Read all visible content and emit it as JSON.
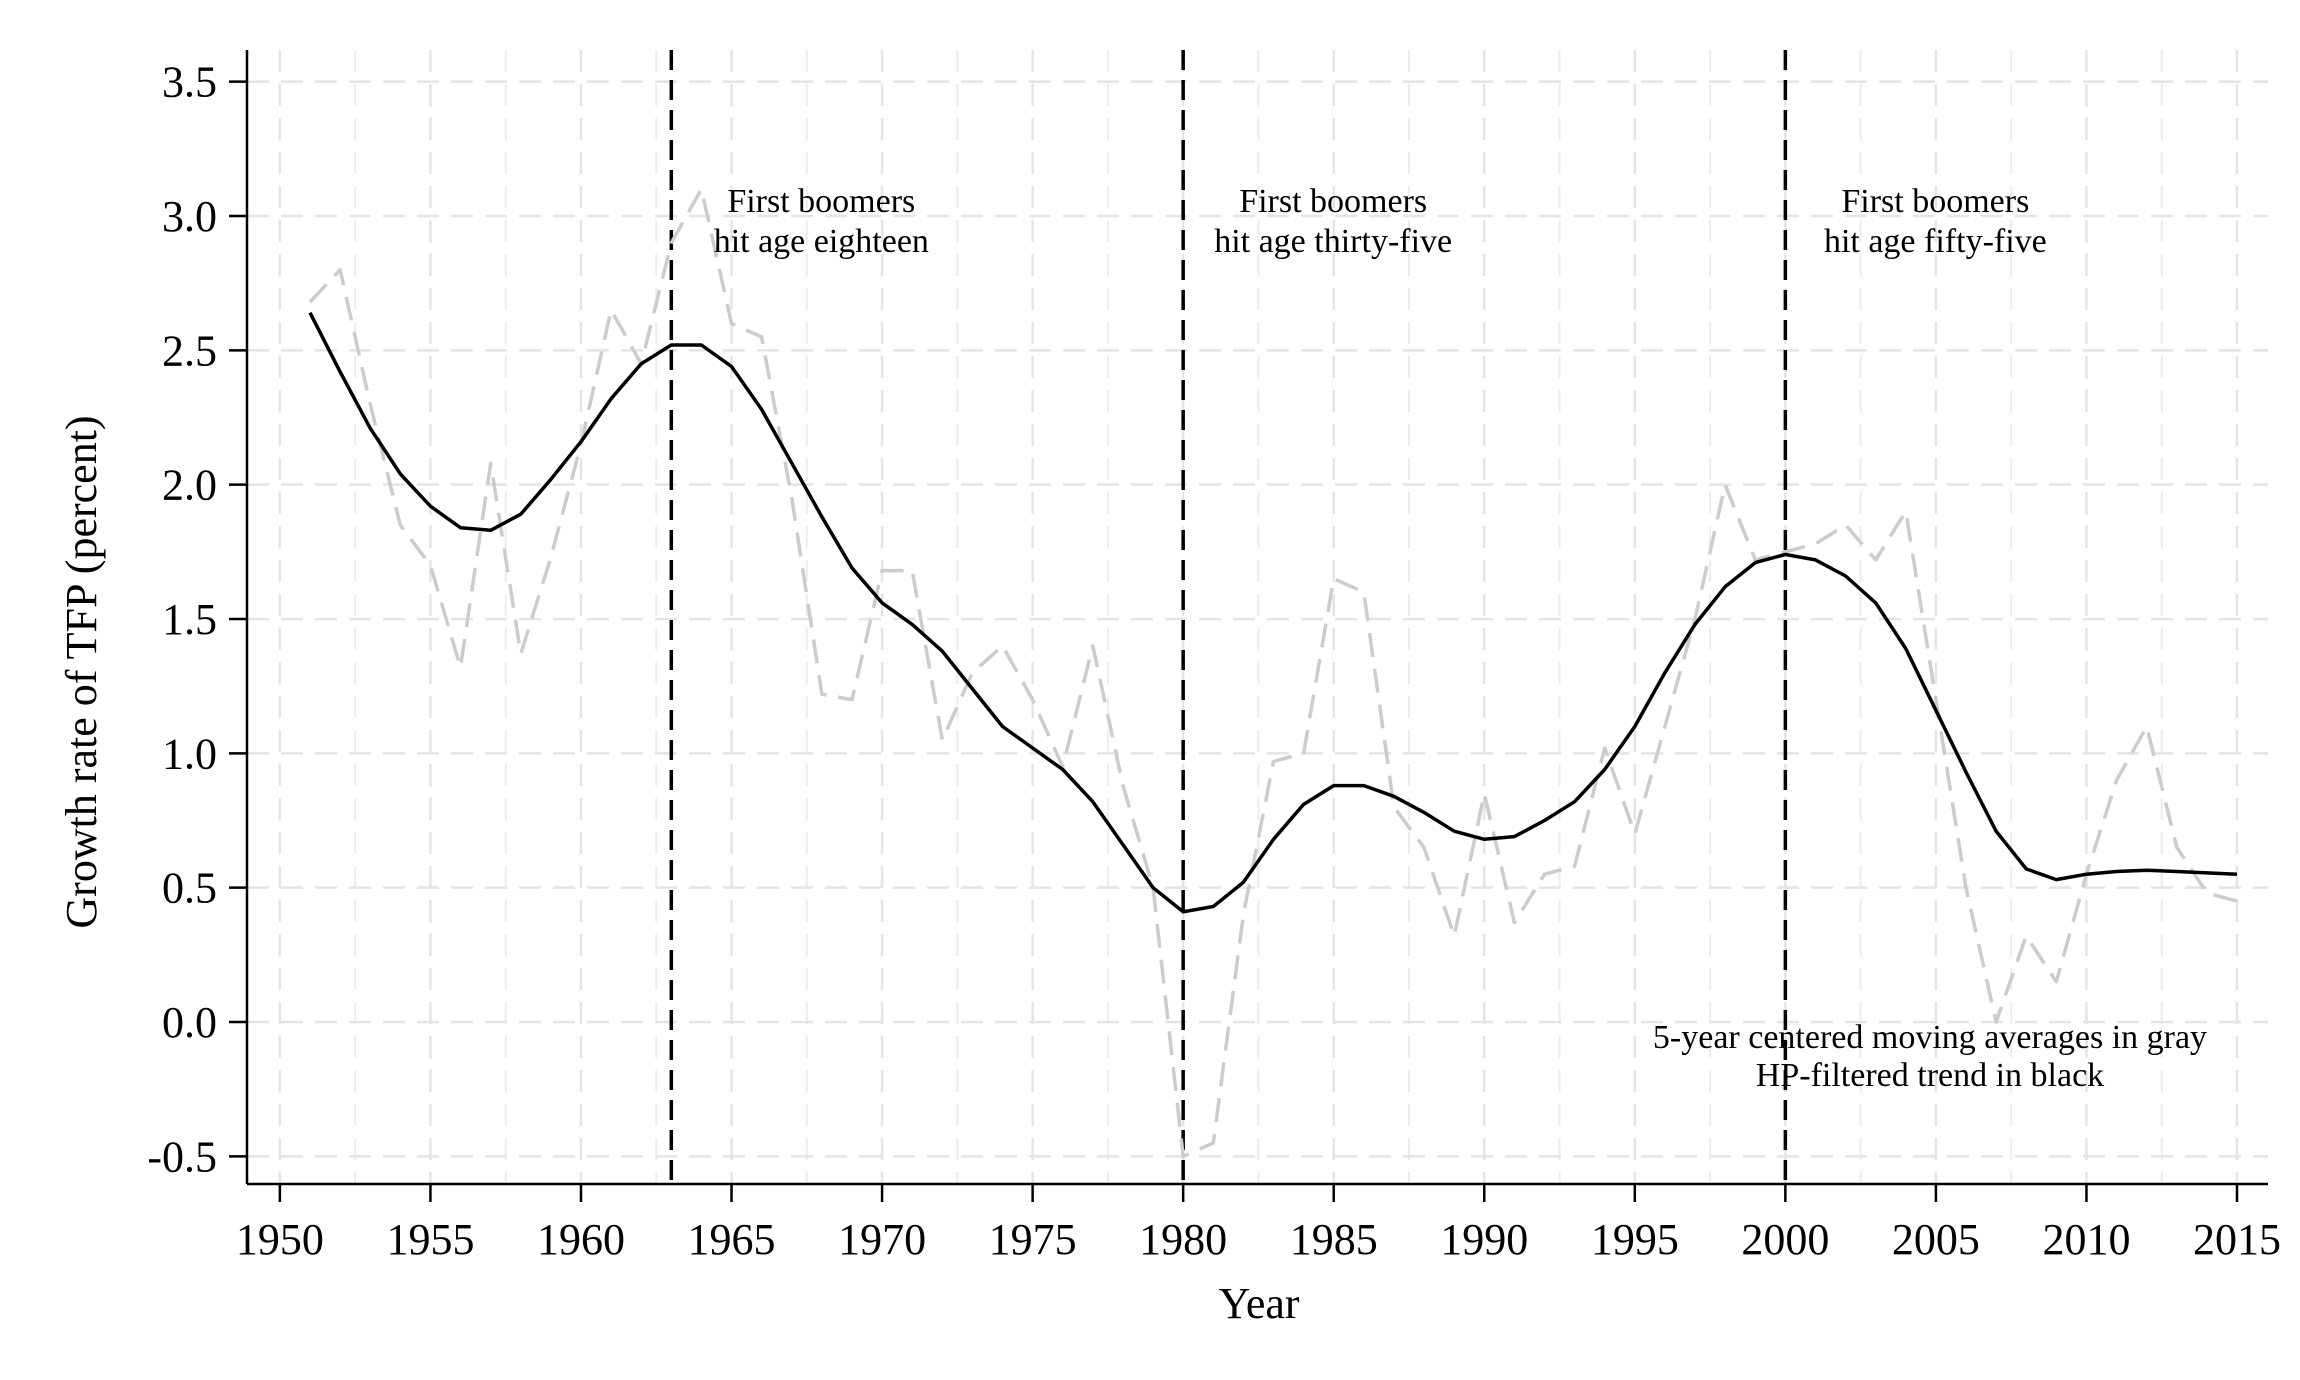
{
  "chart_data": {
    "type": "line",
    "xlabel": "Year",
    "ylabel": "Growth rate of TFP (percent)",
    "xlim": [
      1949,
      2016
    ],
    "ylim": [
      -0.6,
      3.6
    ],
    "xticks": [
      1950,
      1955,
      1960,
      1965,
      1970,
      1975,
      1980,
      1985,
      1990,
      1995,
      2000,
      2005,
      2010,
      2015
    ],
    "yticks": [
      -0.5,
      0.0,
      0.5,
      1.0,
      1.5,
      2.0,
      2.5,
      3.0,
      3.5
    ],
    "ytick_labels": [
      "-0.5",
      "0.0",
      "0.5",
      "1.0",
      "1.5",
      "2.0",
      "2.5",
      "3.0",
      "3.5"
    ],
    "grid": true,
    "series": [
      {
        "id": "moving-average",
        "style": "dashed",
        "color": "#cccccc",
        "x": [
          1951,
          1952,
          1953,
          1954,
          1955,
          1956,
          1957,
          1958,
          1959,
          1960,
          1961,
          1962,
          1963,
          1964,
          1965,
          1966,
          1967,
          1968,
          1969,
          1970,
          1971,
          1972,
          1973,
          1974,
          1975,
          1976,
          1977,
          1978,
          1979,
          1980,
          1981,
          1982,
          1983,
          1984,
          1985,
          1986,
          1987,
          1988,
          1989,
          1990,
          1991,
          1992,
          1993,
          1994,
          1995,
          1996,
          1997,
          1998,
          1999,
          2000,
          2001,
          2002,
          2003,
          2004,
          2005,
          2006,
          2007,
          2008,
          2009,
          2010,
          2011,
          2012,
          2013,
          2014,
          2015
        ],
        "y": [
          2.68,
          2.8,
          2.3,
          1.85,
          1.7,
          1.32,
          2.08,
          1.37,
          1.73,
          2.15,
          2.65,
          2.45,
          2.9,
          3.1,
          2.6,
          2.55,
          1.95,
          1.22,
          1.2,
          1.68,
          1.68,
          1.05,
          1.3,
          1.4,
          1.2,
          0.95,
          1.4,
          0.88,
          0.5,
          -0.5,
          -0.45,
          0.4,
          0.97,
          1.0,
          1.65,
          1.6,
          0.8,
          0.65,
          0.32,
          0.85,
          0.37,
          0.55,
          0.58,
          1.02,
          0.7,
          1.1,
          1.5,
          2.0,
          1.72,
          1.75,
          1.78,
          1.85,
          1.72,
          1.9,
          1.2,
          0.5,
          0.0,
          0.32,
          0.15,
          0.55,
          0.9,
          1.1,
          0.65,
          0.48,
          0.45
        ]
      },
      {
        "id": "hp-trend",
        "style": "solid",
        "color": "#000000",
        "x": [
          1951,
          1952,
          1953,
          1954,
          1955,
          1956,
          1957,
          1958,
          1959,
          1960,
          1961,
          1962,
          1963,
          1964,
          1965,
          1966,
          1967,
          1968,
          1969,
          1970,
          1971,
          1972,
          1973,
          1974,
          1975,
          1976,
          1977,
          1978,
          1979,
          1980,
          1981,
          1982,
          1983,
          1984,
          1985,
          1986,
          1987,
          1988,
          1989,
          1990,
          1991,
          1992,
          1993,
          1994,
          1995,
          1996,
          1997,
          1998,
          1999,
          2000,
          2001,
          2002,
          2003,
          2004,
          2005,
          2006,
          2007,
          2008,
          2009,
          2010,
          2011,
          2012,
          2013,
          2014,
          2015
        ],
        "y": [
          2.64,
          2.42,
          2.21,
          2.04,
          1.92,
          1.84,
          1.83,
          1.89,
          2.02,
          2.16,
          2.32,
          2.45,
          2.52,
          2.52,
          2.44,
          2.28,
          2.08,
          1.88,
          1.69,
          1.56,
          1.48,
          1.38,
          1.24,
          1.1,
          1.02,
          0.94,
          0.82,
          0.66,
          0.5,
          0.41,
          0.43,
          0.52,
          0.68,
          0.81,
          0.88,
          0.88,
          0.84,
          0.78,
          0.71,
          0.68,
          0.69,
          0.75,
          0.82,
          0.94,
          1.1,
          1.3,
          1.48,
          1.62,
          1.71,
          1.74,
          1.72,
          1.66,
          1.56,
          1.39,
          1.16,
          0.93,
          0.71,
          0.57,
          0.53,
          0.55,
          0.56,
          0.565,
          0.56,
          0.555,
          0.55
        ]
      }
    ],
    "vlines": [
      {
        "x": 1963,
        "label_lines": [
          "First boomers",
          "hit age eighteen"
        ]
      },
      {
        "x": 1980,
        "label_lines": [
          "First boomers",
          "hit age thirty-five"
        ]
      },
      {
        "x": 2000,
        "label_lines": [
          "First boomers",
          "hit age fifty-five"
        ]
      }
    ],
    "note_lines": [
      "5-year centered moving averages in gray",
      "HP-filtered trend in black"
    ]
  }
}
